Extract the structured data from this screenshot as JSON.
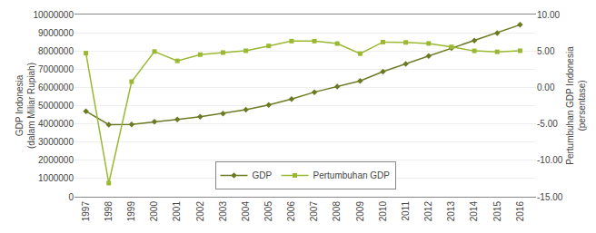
{
  "chart_data": {
    "type": "line",
    "x": [
      1997,
      1998,
      1999,
      2000,
      2001,
      2002,
      2003,
      2004,
      2005,
      2006,
      2007,
      2008,
      2009,
      2010,
      2011,
      2012,
      2013,
      2014,
      2015,
      2016
    ],
    "xlim": [
      1996.5,
      2016.7
    ],
    "xticks": [
      1997,
      1998,
      1999,
      2000,
      2001,
      2002,
      2003,
      2004,
      2005,
      2006,
      2007,
      2008,
      2009,
      2010,
      2011,
      2012,
      2013,
      2014,
      2015,
      2016
    ],
    "ylabel": "GDP Indonesia\n(dalam Miliar Rupiah)",
    "y2label": "Pertumbuhan GDP Indonesia\n(persentase)",
    "ylim": [
      0,
      10000000
    ],
    "yticks": [
      0,
      1000000,
      2000000,
      3000000,
      4000000,
      5000000,
      6000000,
      7000000,
      8000000,
      9000000,
      10000000
    ],
    "y2lim": [
      -15.0,
      10.0
    ],
    "y2ticks": [
      {
        "value": -15,
        "label": "-15.00"
      },
      {
        "value": -10,
        "label": "-10.00"
      },
      {
        "value": -5,
        "label": "-5.00"
      },
      {
        "value": 0,
        "label": "0.00"
      },
      {
        "value": 5,
        "label": "5.00"
      },
      {
        "value": 10,
        "label": "10.00"
      }
    ],
    "grid": true,
    "legend": "lower center",
    "series": [
      {
        "name": "GDP",
        "color": "#6b7a23",
        "marker": "diamond",
        "values": [
          4694144,
          3955450,
          3966621,
          4122586,
          4244539,
          4393274,
          4564906,
          4773100,
          5039098,
          5364669,
          5739491,
          6048914,
          6359604,
          6864133,
          7287635,
          7727083,
          8156497,
          8564866,
          8982517,
          9434613
        ]
      },
      {
        "name": "Pertumbuhan GDP",
        "color": "#9ab832",
        "marker": "square",
        "axis": "y2",
        "values": [
          4.7,
          -13.13,
          0.79,
          4.92,
          3.64,
          4.5,
          4.78,
          5.03,
          5.69,
          6.35,
          6.35,
          6.01,
          4.63,
          6.22,
          6.17,
          6.03,
          5.56,
          5.01,
          4.88,
          5.03
        ]
      }
    ]
  }
}
